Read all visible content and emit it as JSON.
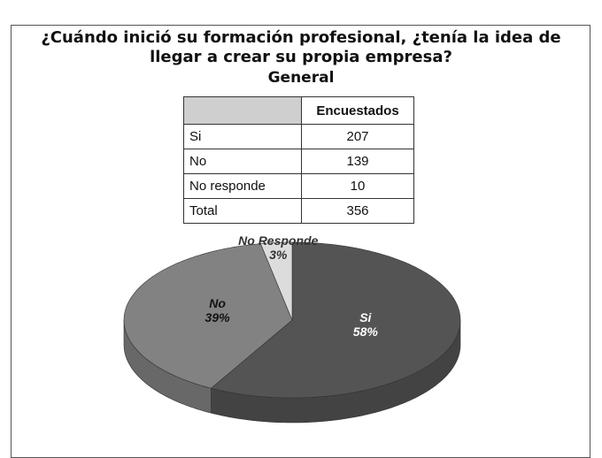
{
  "chart_data": {
    "type": "pie",
    "title": "¿Cuándo inició su formación profesional, ¿tenía la idea de llegar a crear su propia empresa?",
    "subtitle": "General",
    "table": {
      "column": "Encuestados",
      "rows": [
        [
          "Si",
          207
        ],
        [
          "No",
          139
        ],
        [
          "No responde",
          10
        ],
        [
          "Total",
          356
        ]
      ]
    },
    "categories": [
      "Si",
      "No",
      "No Responde"
    ],
    "values": [
      58,
      39,
      3
    ],
    "value_labels": [
      "58%",
      "39%",
      "3%"
    ],
    "colors": [
      "#545454",
      "#828282",
      "#dcdcdc"
    ],
    "label_colors": [
      "#ffffff",
      "#111111",
      "#333333"
    ]
  }
}
